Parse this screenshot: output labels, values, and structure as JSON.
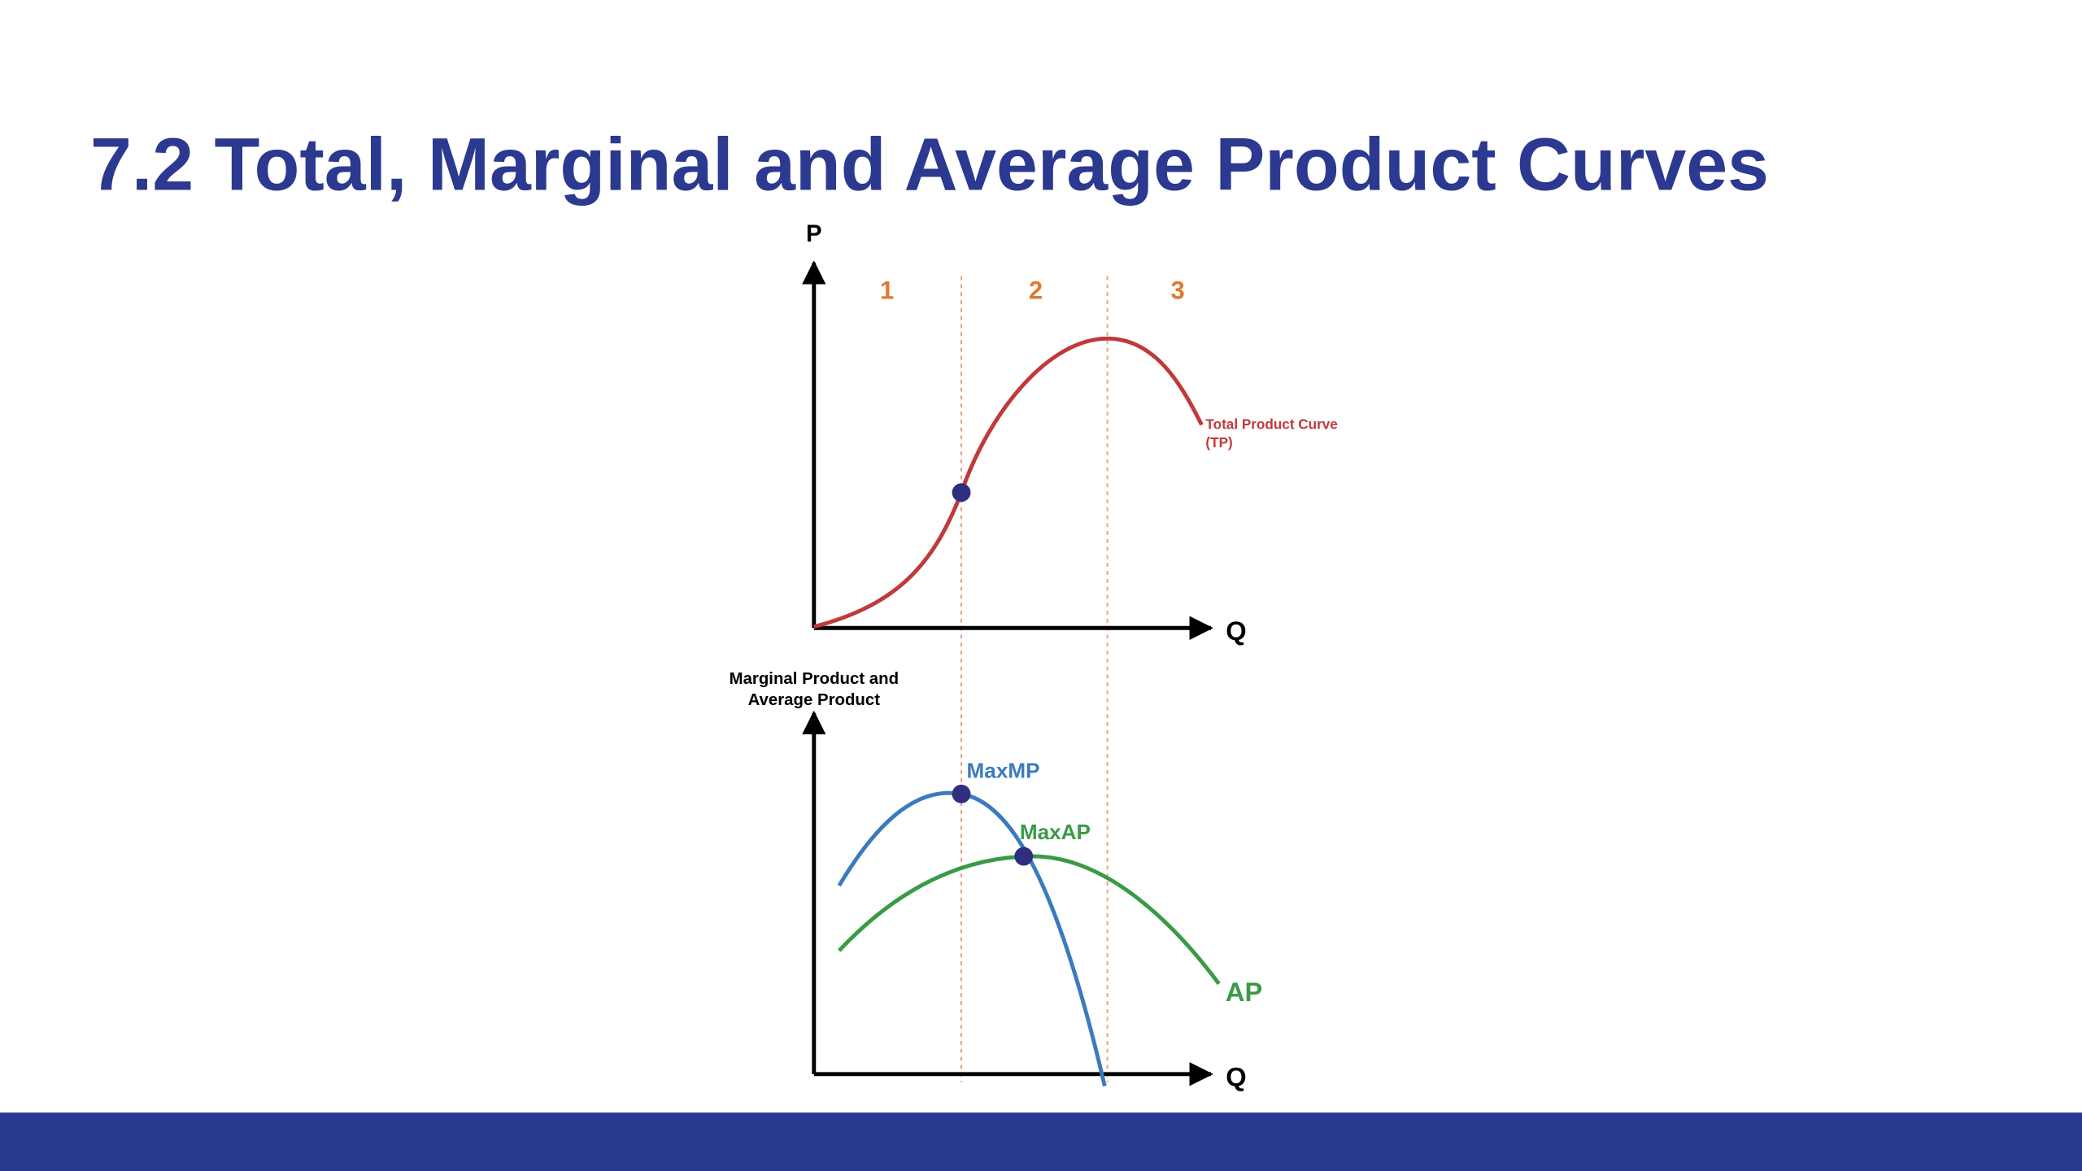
{
  "title": "7.2 Total, Marginal and Average Product Curves",
  "top_chart": {
    "y_axis_label": "P",
    "x_axis_label": "Q",
    "stages": [
      "1",
      "2",
      "3"
    ],
    "curve_label": [
      "Total Product Curve",
      "(TP)"
    ]
  },
  "bottom_chart": {
    "y_axis_label": [
      "Marginal Product and",
      "Average Product"
    ],
    "x_axis_label": "Q",
    "max_mp_label": "MaxMP",
    "max_ap_label": "MaxAP",
    "ap_label": "AP"
  }
}
